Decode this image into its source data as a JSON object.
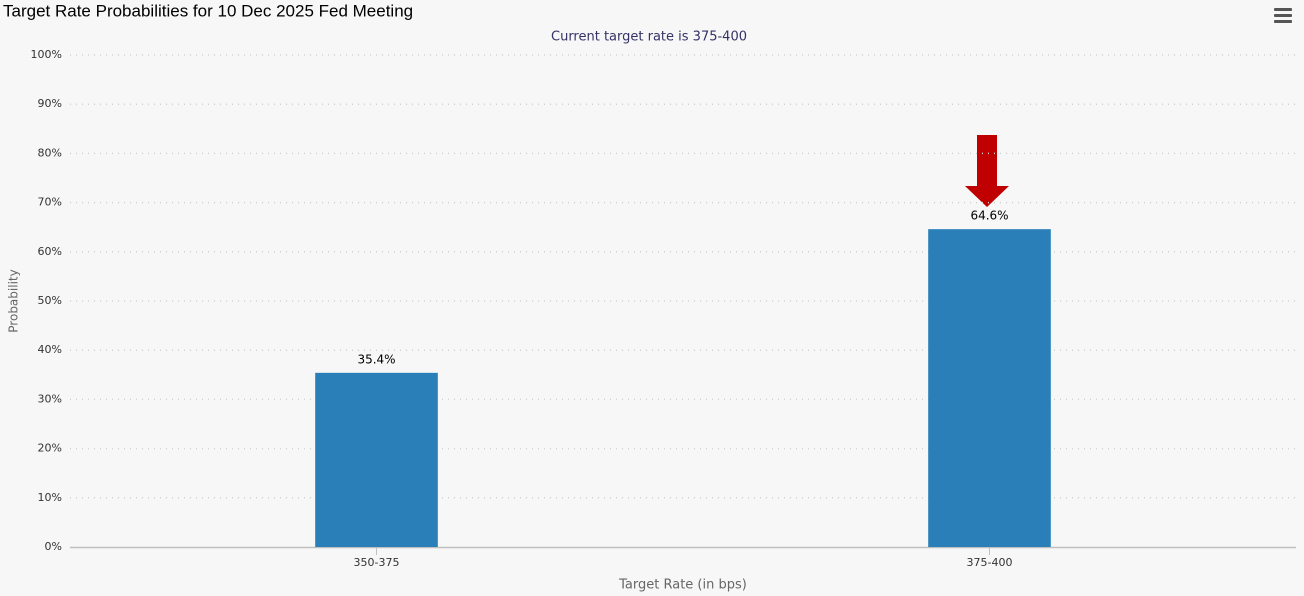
{
  "chart_data": {
    "type": "bar",
    "title": "Target Rate Probabilities for 10 Dec 2025 Fed Meeting",
    "subtitle": "Current target rate is 375-400",
    "x_label": "Target Rate (in bps)",
    "y_label": "Probability",
    "categories": [
      "350-375",
      "375-400"
    ],
    "values": [
      35.4,
      64.6
    ],
    "value_labels": [
      "35.4%",
      "64.6%"
    ],
    "color": "#2a7fb8",
    "ylim": [
      0,
      100
    ],
    "yticks": [
      {
        "value": 0,
        "label": "0%"
      },
      {
        "value": 10,
        "label": "10%"
      },
      {
        "value": 20,
        "label": "20%"
      },
      {
        "value": 30,
        "label": "30%"
      },
      {
        "value": 40,
        "label": "40%"
      },
      {
        "value": 50,
        "label": "50%"
      },
      {
        "value": 60,
        "label": "60%"
      },
      {
        "value": 70,
        "label": "70%"
      },
      {
        "value": 80,
        "label": "80%"
      },
      {
        "value": 90,
        "label": "90%"
      },
      {
        "value": 100,
        "label": "100%"
      }
    ],
    "grid": true
  }
}
